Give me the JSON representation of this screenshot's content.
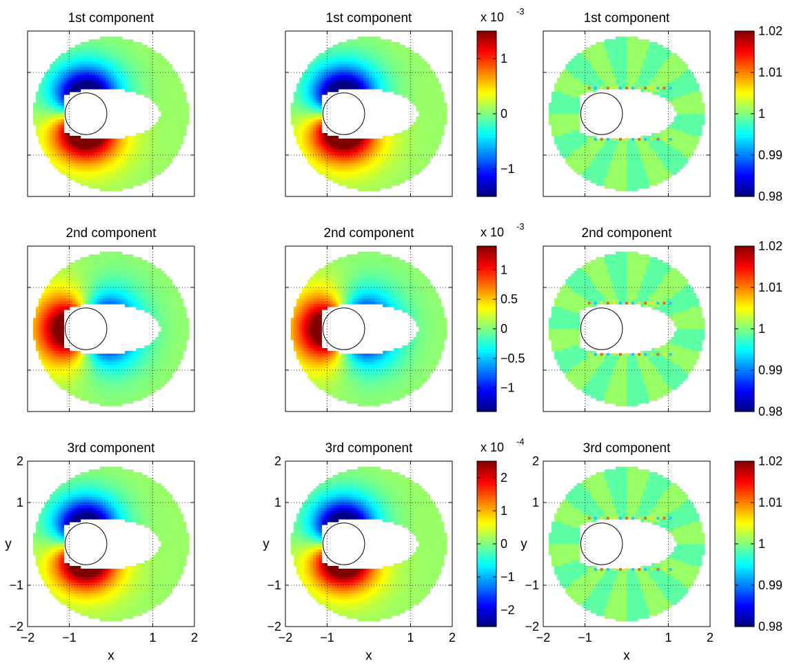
{
  "chart_data": {
    "type": "heatmap",
    "colormap": "jet",
    "domain_description_visible": "annulus with elliptical hole, circle outline at center",
    "panels": [
      {
        "row": 0,
        "col": 0,
        "title": "1st component",
        "field": "d1",
        "clim": [
          -0.0015,
          0.0015
        ],
        "colorbar": false,
        "xticklabels": false,
        "yticklabels": false,
        "xlabel": "",
        "ylabel": ""
      },
      {
        "row": 0,
        "col": 1,
        "title": "1st component",
        "field": "d1",
        "clim": [
          -0.0015,
          0.0015
        ],
        "colorbar": true,
        "cb_exponent": "-3",
        "cb_ticks": [
          1,
          0,
          -1
        ],
        "cb_tick_labels": [
          "1",
          "0",
          "−1"
        ],
        "cb_range": [
          -1.5,
          1.5
        ],
        "xticklabels": false,
        "yticklabels": false,
        "xlabel": "",
        "ylabel": ""
      },
      {
        "row": 0,
        "col": 2,
        "title": "1st component",
        "field": "ratio",
        "clim": [
          0.98,
          1.02
        ],
        "colorbar": true,
        "cb_exponent": "",
        "cb_ticks": [
          1.02,
          1.01,
          1,
          0.99,
          0.98
        ],
        "cb_tick_labels": [
          "1.02",
          "1.01",
          "1",
          "0.99",
          "0.98"
        ],
        "cb_range": [
          0.98,
          1.02
        ],
        "xticklabels": false,
        "yticklabels": false,
        "xlabel": "",
        "ylabel": ""
      },
      {
        "row": 1,
        "col": 0,
        "title": "2nd component",
        "field": "d2",
        "clim": [
          -0.0014,
          0.0014
        ],
        "colorbar": false,
        "xticklabels": false,
        "yticklabels": false,
        "xlabel": "",
        "ylabel": ""
      },
      {
        "row": 1,
        "col": 1,
        "title": "2nd component",
        "field": "d2",
        "clim": [
          -0.0014,
          0.0014
        ],
        "colorbar": true,
        "cb_exponent": "-3",
        "cb_ticks": [
          1,
          0.5,
          0,
          -0.5,
          -1
        ],
        "cb_tick_labels": [
          "1",
          "0.5",
          "0",
          "−0.5",
          "−1"
        ],
        "cb_range": [
          -1.4,
          1.4
        ],
        "xticklabels": false,
        "yticklabels": false,
        "xlabel": "",
        "ylabel": ""
      },
      {
        "row": 1,
        "col": 2,
        "title": "2nd component",
        "field": "ratio",
        "clim": [
          0.98,
          1.02
        ],
        "colorbar": true,
        "cb_exponent": "",
        "cb_ticks": [
          1.02,
          1.01,
          1,
          0.99,
          0.98
        ],
        "cb_tick_labels": [
          "1.02",
          "1.01",
          "1",
          "0.99",
          "0.98"
        ],
        "cb_range": [
          0.98,
          1.02
        ],
        "xticklabels": false,
        "yticklabels": false,
        "xlabel": "",
        "ylabel": ""
      },
      {
        "row": 2,
        "col": 0,
        "title": "3rd component",
        "field": "d3",
        "clim": [
          -0.00025,
          0.00025
        ],
        "colorbar": false,
        "xticklabels": true,
        "yticklabels": true,
        "xlabel": "x",
        "ylabel": "y"
      },
      {
        "row": 2,
        "col": 1,
        "title": "3rd component",
        "field": "d3",
        "clim": [
          -0.00025,
          0.00025
        ],
        "colorbar": true,
        "cb_exponent": "-4",
        "cb_ticks": [
          2,
          1,
          0,
          -1,
          -2
        ],
        "cb_tick_labels": [
          "2",
          "1",
          "0",
          "−1",
          "−2"
        ],
        "cb_range": [
          -2.5,
          2.5
        ],
        "xticklabels": true,
        "yticklabels": true,
        "xlabel": "x",
        "ylabel": "y"
      },
      {
        "row": 2,
        "col": 2,
        "title": "3rd component",
        "field": "ratio",
        "clim": [
          0.98,
          1.02
        ],
        "colorbar": true,
        "cb_exponent": "",
        "cb_ticks": [
          1.02,
          1.01,
          1,
          0.99,
          0.98
        ],
        "cb_tick_labels": [
          "1.02",
          "1.01",
          "1",
          "0.99",
          "0.98"
        ],
        "cb_range": [
          0.98,
          1.02
        ],
        "xticklabels": true,
        "yticklabels": true,
        "xlabel": "x",
        "ylabel": "y"
      }
    ],
    "xlim": [
      -2,
      2
    ],
    "ylim": [
      -2,
      2
    ],
    "xticks": [
      -2,
      -1,
      1,
      2
    ],
    "xtick_labels": [
      "−2",
      "−1",
      "1",
      "2"
    ],
    "yticks": [
      2,
      1,
      -1,
      -2
    ],
    "ytick_labels": [
      "2",
      "1",
      "−1",
      "−2"
    ],
    "grid": "dotted",
    "exponent_prefix": "x 10"
  }
}
